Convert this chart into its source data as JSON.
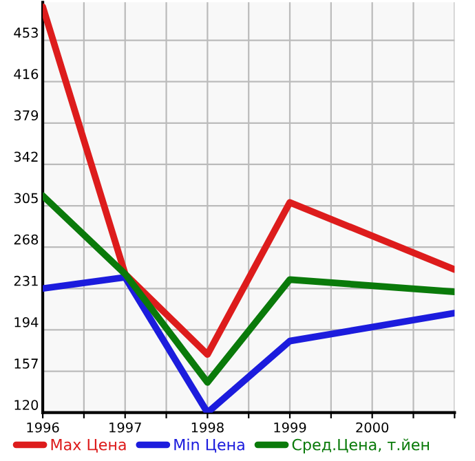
{
  "chart_data": {
    "type": "line",
    "x": [
      1996,
      1997,
      1998,
      1999,
      2001
    ],
    "series": [
      {
        "name": "Max Цена",
        "color": "#dd1c1c",
        "values": [
          483,
          244,
          172,
          308,
          248
        ]
      },
      {
        "name": "Min Цена",
        "color": "#1c1cdd",
        "values": [
          231,
          241,
          120,
          184,
          209
        ]
      },
      {
        "name": "Сред.Цена, т.йен",
        "color": "#0a7a0a",
        "values": [
          314,
          244,
          147,
          239,
          228
        ]
      }
    ],
    "xlim": [
      1996,
      2001
    ],
    "ylim": [
      120,
      487
    ],
    "xticks": [
      1996,
      {
        "value": 1996.5,
        "label": null
      },
      1997,
      {
        "value": 1997.5,
        "label": null
      },
      1998,
      {
        "value": 1998.5,
        "label": null
      },
      1999,
      {
        "value": 1999.5,
        "label": null
      },
      2000,
      {
        "value": 2000.5,
        "label": null
      },
      {
        "value": 2001,
        "label": null
      }
    ],
    "yticks": [
      120,
      157,
      194,
      231,
      268,
      305,
      342,
      379,
      416,
      453
    ],
    "grid": true,
    "legend": "bottom",
    "marker": "none",
    "line_style": "solid"
  }
}
